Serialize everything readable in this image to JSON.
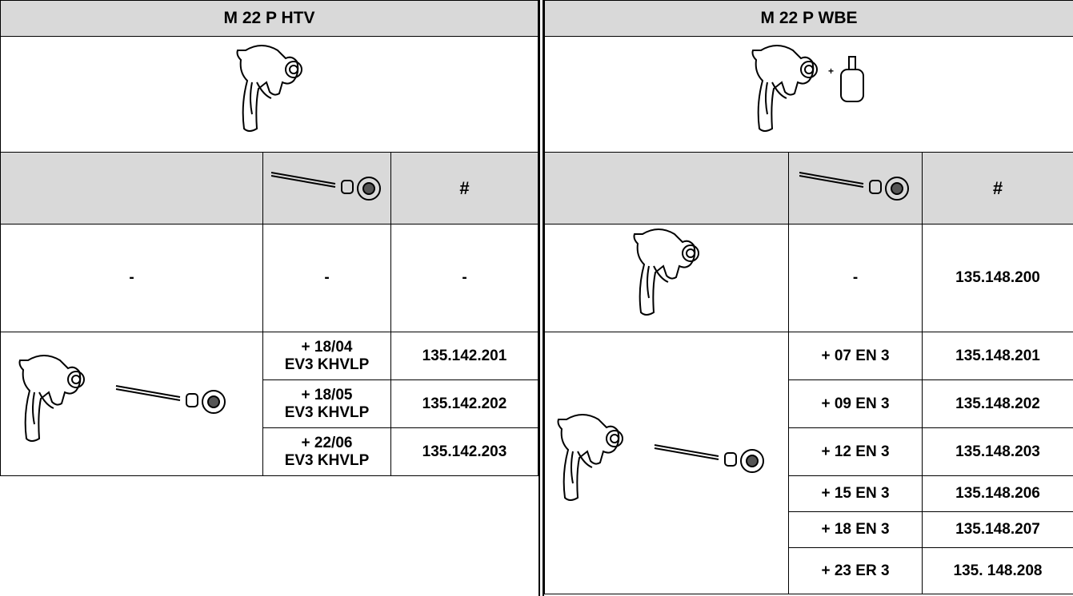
{
  "left": {
    "title": "M 22 P HTV",
    "hash": "#",
    "empty_row": [
      "-",
      "-",
      "-"
    ],
    "kits": [
      {
        "nozzle": [
          "+ 18/04",
          "EV3 KHVLP"
        ],
        "code": "135.142.201"
      },
      {
        "nozzle": [
          "+ 18/05",
          "EV3 KHVLP"
        ],
        "code": "135.142.202"
      },
      {
        "nozzle": [
          "+ 22/06",
          "EV3 KHVLP"
        ],
        "code": "135.142.203"
      }
    ]
  },
  "right": {
    "title": "M 22 P WBE",
    "hash": "#",
    "gun_row": {
      "nozzle": "-",
      "code": "135.148.200"
    },
    "kits": [
      {
        "nozzle": "+ 07 EN 3",
        "code": "135.148.201"
      },
      {
        "nozzle": "+ 09 EN 3",
        "code": "135.148.202"
      },
      {
        "nozzle": "+ 12 EN 3",
        "code": "135.148.203"
      },
      {
        "nozzle": "+ 15 EN 3",
        "code": "135.148.206"
      },
      {
        "nozzle": "+ 18 EN 3",
        "code": "135.148.207"
      },
      {
        "nozzle": "+ 23 ER 3",
        "code": "135. 148.208"
      }
    ]
  }
}
